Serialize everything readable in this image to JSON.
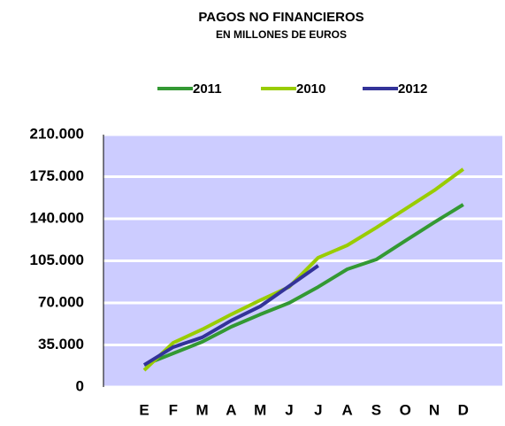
{
  "chart_data": {
    "type": "line",
    "title": "PAGOS NO FINANCIEROS",
    "subtitle": "EN MILLONES DE EUROS",
    "categories": [
      "E",
      "F",
      "M",
      "A",
      "M",
      "J",
      "J",
      "A",
      "S",
      "O",
      "N",
      "D"
    ],
    "series": [
      {
        "name": "2011",
        "color": "#339933",
        "values": [
          18400,
          28000,
          37600,
          50100,
          60400,
          70000,
          83300,
          98000,
          106100,
          121600,
          137000,
          151800
        ]
      },
      {
        "name": "2010",
        "color": "#99cc00",
        "values": [
          14000,
          36800,
          47900,
          60400,
          72200,
          83300,
          107600,
          117900,
          132600,
          148100,
          163600,
          181300
        ]
      },
      {
        "name": "2012",
        "color": "#333399",
        "values": [
          18400,
          33200,
          41300,
          55300,
          67100,
          84000,
          101000,
          null,
          null,
          null,
          null,
          null
        ]
      }
    ],
    "ylim": [
      0,
      210000
    ],
    "yticks": [
      0,
      {
        "value": 35000,
        "label": "35.000"
      },
      {
        "value": 70000,
        "label": "70.000"
      },
      {
        "value": 105000,
        "label": "105.000"
      },
      {
        "value": 140000,
        "label": "140.000"
      },
      {
        "value": 175000,
        "label": "175.000"
      },
      {
        "value": 210000,
        "label": "210.000"
      }
    ],
    "grid": true,
    "legend": "top",
    "plot_background": "#ccccff"
  }
}
